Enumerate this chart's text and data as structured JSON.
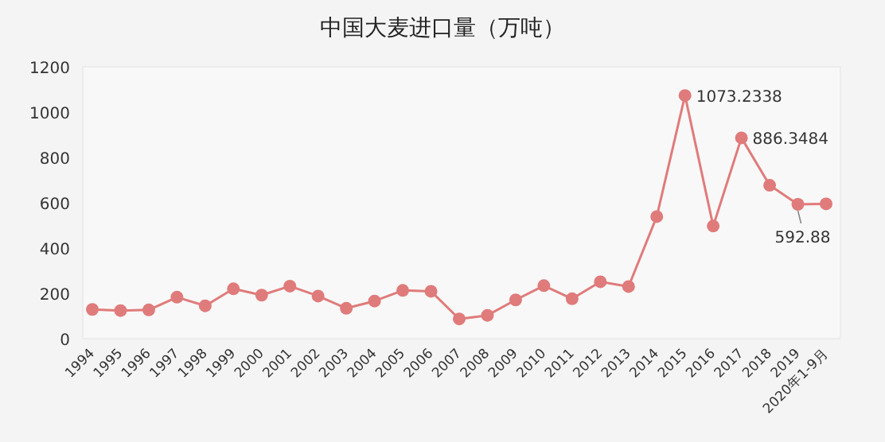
{
  "chart_data": {
    "type": "line",
    "title": "中国大麦进口量（万吨）",
    "categories": [
      "1994",
      "1995",
      "1996",
      "1997",
      "1998",
      "1999",
      "2000",
      "2001",
      "2002",
      "2003",
      "2004",
      "2005",
      "2006",
      "2007",
      "2008",
      "2009",
      "2010",
      "2011",
      "2012",
      "2013",
      "2014",
      "2015",
      "2016",
      "2017",
      "2018",
      "2019",
      "2020年1-9月"
    ],
    "series": [
      {
        "color": "#e07b7b",
        "values": [
          129,
          124,
          127,
          183,
          145,
          220,
          192,
          232,
          188,
          134,
          166,
          213,
          209,
          87,
          103,
          171,
          234,
          176,
          251,
          230,
          539,
          1073.2338,
          497,
          886.3484,
          677,
          592.88,
          595
        ]
      }
    ],
    "value_labels": [
      null,
      null,
      null,
      null,
      null,
      null,
      null,
      null,
      null,
      null,
      null,
      null,
      null,
      null,
      null,
      null,
      null,
      null,
      null,
      null,
      null,
      "1073.2338",
      null,
      "886.3484",
      null,
      "592.88",
      null
    ],
    "ylim": [
      0,
      1200
    ],
    "yticks": [
      0,
      200,
      400,
      600,
      800,
      1000,
      1200
    ],
    "marker": "circle",
    "line_style": "solid",
    "grid": false
  }
}
